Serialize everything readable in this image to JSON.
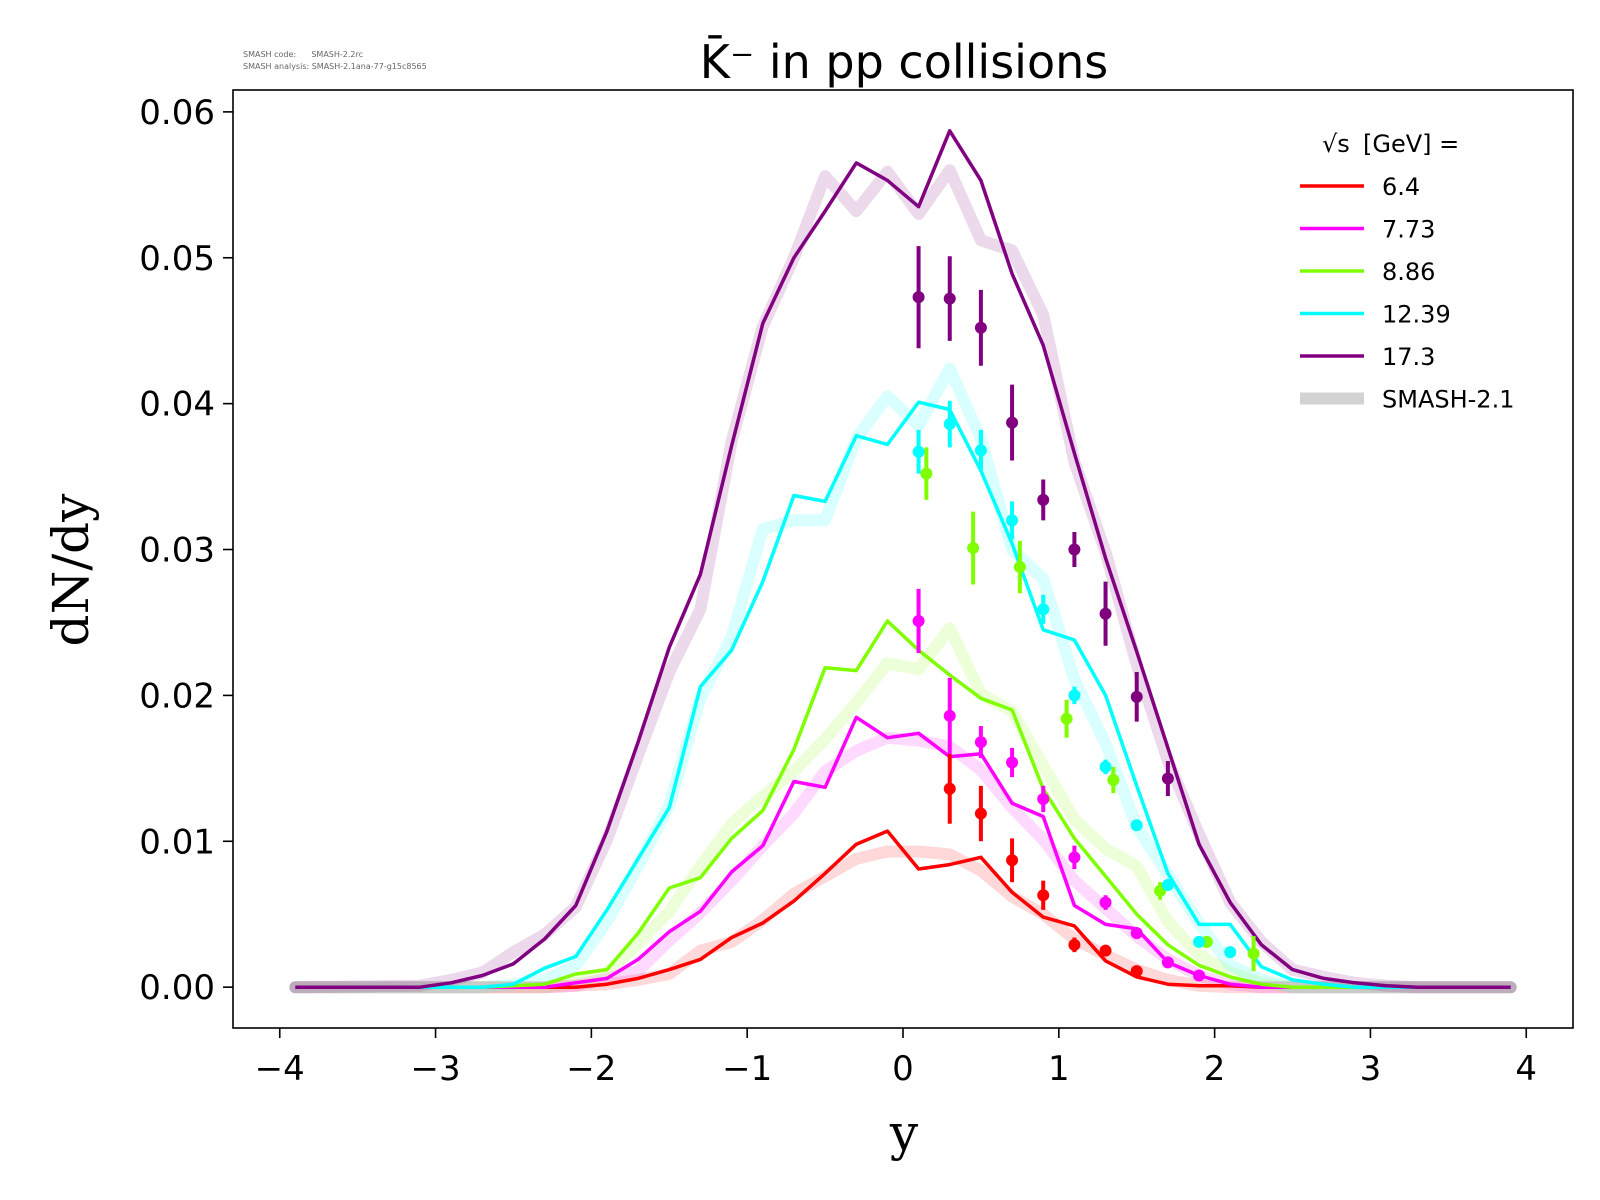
{
  "meta": {
    "code_line": "SMASH code:      SMASH-2.2rc",
    "analysis_line": "SMASH analysis: SMASH-2.1ana-77-g15c8565"
  },
  "chart_data": {
    "type": "line",
    "title": "K̄⁻ in pp collisions",
    "xlabel": "y",
    "ylabel": "dN/dy",
    "xlim": [
      -4.3,
      4.3
    ],
    "ylim": [
      -0.0028,
      0.0615
    ],
    "xticks": [
      -4,
      -3,
      -2,
      -1,
      0,
      1,
      2,
      3,
      4
    ],
    "xtick_labels": [
      "−4",
      "−3",
      "−2",
      "−1",
      "0",
      "1",
      "2",
      "3",
      "4"
    ],
    "yticks": [
      0.0,
      0.01,
      0.02,
      0.03,
      0.04,
      0.05,
      0.06
    ],
    "ytick_labels": [
      "0.00",
      "0.01",
      "0.02",
      "0.03",
      "0.04",
      "0.05",
      "0.06"
    ],
    "grid": false,
    "legend": {
      "position": "top-right",
      "title_sqrt": "√s",
      "title_rest": " [GeV] =",
      "reference_label": "SMASH-2.1",
      "reference_color": "#d3d3d3"
    },
    "x": [
      -3.9,
      -3.1,
      -2.9,
      -2.7,
      -2.5,
      -2.3,
      -2.1,
      -1.9,
      -1.7,
      -1.5,
      -1.3,
      -1.1,
      -0.9,
      -0.7,
      -0.5,
      -0.3,
      -0.1,
      0.1,
      0.3,
      0.5,
      0.7,
      0.9,
      1.1,
      1.3,
      1.5,
      1.7,
      1.9,
      2.1,
      2.3,
      2.5,
      2.7,
      2.9,
      3.1,
      3.3,
      3.9
    ],
    "series": [
      {
        "name": "6.4",
        "color": "#ff0000",
        "values": [
          0,
          0,
          0,
          0,
          0,
          0,
          0,
          0.0002,
          0.0006,
          0.0012,
          0.0019,
          0.0034,
          0.0044,
          0.0059,
          0.0078,
          0.0098,
          0.0107,
          0.0081,
          0.0084,
          0.0089,
          0.0065,
          0.0048,
          0.0042,
          0.0018,
          0.0007,
          0.0002,
          0.0001,
          0.0001,
          0,
          0,
          0,
          0,
          0,
          0,
          0
        ],
        "reference": [
          0,
          0,
          0,
          0,
          0,
          0,
          0.0001,
          0.0002,
          0.0005,
          0.0009,
          0.0025,
          0.0031,
          0.0046,
          0.0064,
          0.0076,
          0.0088,
          0.0093,
          0.0093,
          0.0091,
          0.008,
          0.0062,
          0.005,
          0.0033,
          0.0022,
          0.0012,
          0.0005,
          0.0001,
          0,
          0,
          0,
          0,
          0,
          0,
          0,
          0
        ],
        "data_points": [
          {
            "x": 0.3,
            "y": 0.0136,
            "err": 0.0024
          },
          {
            "x": 0.5,
            "y": 0.0119,
            "err": 0.0019
          },
          {
            "x": 0.7,
            "y": 0.0087,
            "err": 0.0015
          },
          {
            "x": 0.9,
            "y": 0.0063,
            "err": 0.001
          },
          {
            "x": 1.1,
            "y": 0.0029,
            "err": 0.0005
          },
          {
            "x": 1.3,
            "y": 0.0025,
            "err": 0.0003
          },
          {
            "x": 1.5,
            "y": 0.0011,
            "err": 0.0002
          }
        ]
      },
      {
        "name": "7.73",
        "color": "#ff00ff",
        "values": [
          0,
          0,
          0,
          0,
          0,
          0,
          0.0003,
          0.0006,
          0.0019,
          0.0038,
          0.0052,
          0.0079,
          0.0097,
          0.0141,
          0.0137,
          0.0185,
          0.0171,
          0.0174,
          0.0158,
          0.016,
          0.0126,
          0.0117,
          0.0056,
          0.0043,
          0.004,
          0.0017,
          0.0008,
          0.0002,
          0,
          0,
          0,
          0,
          0,
          0,
          0
        ],
        "reference": [
          0,
          0,
          0,
          0,
          0,
          0,
          0.0001,
          0.0006,
          0.0011,
          0.0032,
          0.0051,
          0.0073,
          0.0097,
          0.0119,
          0.0148,
          0.0162,
          0.0171,
          0.0169,
          0.0165,
          0.0149,
          0.0123,
          0.0101,
          0.0073,
          0.0054,
          0.0035,
          0.0019,
          0.0008,
          0.0002,
          0,
          0,
          0,
          0,
          0,
          0,
          0
        ],
        "data_points": [
          {
            "x": 0.1,
            "y": 0.0251,
            "err": 0.0022
          },
          {
            "x": 0.3,
            "y": 0.0186,
            "err": 0.0026
          },
          {
            "x": 0.5,
            "y": 0.0168,
            "err": 0.0011
          },
          {
            "x": 0.7,
            "y": 0.0154,
            "err": 0.001
          },
          {
            "x": 0.9,
            "y": 0.0129,
            "err": 0.0009
          },
          {
            "x": 1.1,
            "y": 0.0089,
            "err": 0.0008
          },
          {
            "x": 1.3,
            "y": 0.0058,
            "err": 0.0005
          },
          {
            "x": 1.5,
            "y": 0.0037,
            "err": 0.0003
          },
          {
            "x": 1.7,
            "y": 0.0017,
            "err": 0.0002
          },
          {
            "x": 1.9,
            "y": 0.0008,
            "err": 0.0001
          }
        ]
      },
      {
        "name": "8.86",
        "color": "#7fff00",
        "values": [
          0,
          0,
          0,
          0,
          0.0001,
          0.0002,
          0.0009,
          0.0012,
          0.0037,
          0.0068,
          0.0075,
          0.0102,
          0.0121,
          0.0163,
          0.0219,
          0.0217,
          0.0251,
          0.0231,
          0.0214,
          0.0198,
          0.019,
          0.0136,
          0.0102,
          0.0076,
          0.005,
          0.0029,
          0.0015,
          0.0007,
          0.0002,
          0,
          0,
          0,
          0,
          0,
          0
        ],
        "reference": [
          0,
          0,
          0,
          0,
          0,
          0,
          0.0003,
          0.001,
          0.003,
          0.0052,
          0.0083,
          0.0112,
          0.0131,
          0.0148,
          0.017,
          0.0195,
          0.0222,
          0.0218,
          0.0246,
          0.0201,
          0.0189,
          0.0152,
          0.0115,
          0.0095,
          0.0083,
          0.0045,
          0.0022,
          0.001,
          0.0003,
          0,
          0,
          0,
          0,
          0,
          0
        ],
        "data_points": [
          {
            "x": 0.15,
            "y": 0.0352,
            "err": 0.0018
          },
          {
            "x": 0.45,
            "y": 0.0301,
            "err": 0.0025
          },
          {
            "x": 0.75,
            "y": 0.0288,
            "err": 0.0018
          },
          {
            "x": 1.05,
            "y": 0.0184,
            "err": 0.0013
          },
          {
            "x": 1.35,
            "y": 0.0142,
            "err": 0.0009
          },
          {
            "x": 1.65,
            "y": 0.0066,
            "err": 0.0006
          },
          {
            "x": 1.95,
            "y": 0.0031,
            "err": 0.0004
          },
          {
            "x": 2.25,
            "y": 0.0023,
            "err": 0.0012
          }
        ]
      },
      {
        "name": "12.39",
        "color": "#00ffff",
        "values": [
          0,
          0,
          0,
          0,
          0.0002,
          0.0013,
          0.0021,
          0.0053,
          0.0088,
          0.0123,
          0.0206,
          0.0231,
          0.0278,
          0.0337,
          0.0333,
          0.0378,
          0.0372,
          0.0401,
          0.0396,
          0.0354,
          0.0304,
          0.0245,
          0.0238,
          0.02,
          0.0138,
          0.0078,
          0.0043,
          0.0043,
          0.0014,
          0.0005,
          0.0002,
          0,
          0,
          0,
          0
        ],
        "reference": [
          0,
          0,
          0,
          0,
          0.0002,
          0.0005,
          0.0015,
          0.0045,
          0.0083,
          0.0125,
          0.0198,
          0.024,
          0.0314,
          0.032,
          0.032,
          0.0376,
          0.0405,
          0.0385,
          0.0424,
          0.0376,
          0.03,
          0.028,
          0.0211,
          0.0167,
          0.011,
          0.0077,
          0.0044,
          0.0015,
          0.0005,
          0,
          0,
          0,
          0,
          0,
          0
        ],
        "data_points": [
          {
            "x": 0.1,
            "y": 0.0367,
            "err": 0.0015
          },
          {
            "x": 0.3,
            "y": 0.0386,
            "err": 0.0016
          },
          {
            "x": 0.5,
            "y": 0.0368,
            "err": 0.0014
          },
          {
            "x": 0.7,
            "y": 0.032,
            "err": 0.0013
          },
          {
            "x": 0.9,
            "y": 0.0259,
            "err": 0.001
          },
          {
            "x": 1.1,
            "y": 0.02,
            "err": 0.0006
          },
          {
            "x": 1.3,
            "y": 0.0151,
            "err": 0.0005
          },
          {
            "x": 1.5,
            "y": 0.0111,
            "err": 0.0003
          },
          {
            "x": 1.7,
            "y": 0.007,
            "err": 0.0003
          },
          {
            "x": 1.9,
            "y": 0.0031,
            "err": 0.0002
          },
          {
            "x": 2.1,
            "y": 0.0024,
            "err": 0.0001
          }
        ]
      },
      {
        "name": "17.3",
        "color": "#800080",
        "values": [
          0,
          0,
          0.0003,
          0.0008,
          0.0016,
          0.0033,
          0.0056,
          0.0107,
          0.0168,
          0.0233,
          0.0283,
          0.0371,
          0.0455,
          0.05,
          0.0532,
          0.0565,
          0.0553,
          0.0535,
          0.0587,
          0.0553,
          0.0489,
          0.044,
          0.0366,
          0.0294,
          0.023,
          0.0164,
          0.0098,
          0.0058,
          0.0029,
          0.0012,
          0.0006,
          0.0003,
          0.0001,
          0,
          0
        ],
        "reference": [
          0,
          0.0001,
          0.0005,
          0.001,
          0.0024,
          0.0036,
          0.0055,
          0.0101,
          0.0159,
          0.0216,
          0.0259,
          0.0374,
          0.0453,
          0.05,
          0.0556,
          0.0532,
          0.0559,
          0.053,
          0.056,
          0.0512,
          0.0505,
          0.0461,
          0.036,
          0.0298,
          0.0221,
          0.0155,
          0.0105,
          0.0058,
          0.0031,
          0.0012,
          0.0007,
          0.0003,
          0.0001,
          0,
          0
        ],
        "data_points": [
          {
            "x": 0.1,
            "y": 0.0473,
            "err": 0.0035
          },
          {
            "x": 0.3,
            "y": 0.0472,
            "err": 0.0029
          },
          {
            "x": 0.5,
            "y": 0.0452,
            "err": 0.0026
          },
          {
            "x": 0.7,
            "y": 0.0387,
            "err": 0.0026
          },
          {
            "x": 0.9,
            "y": 0.0334,
            "err": 0.0014
          },
          {
            "x": 1.1,
            "y": 0.03,
            "err": 0.0012
          },
          {
            "x": 1.3,
            "y": 0.0256,
            "err": 0.0022
          },
          {
            "x": 1.5,
            "y": 0.0199,
            "err": 0.0017
          },
          {
            "x": 1.7,
            "y": 0.0143,
            "err": 0.0012
          }
        ]
      }
    ]
  }
}
